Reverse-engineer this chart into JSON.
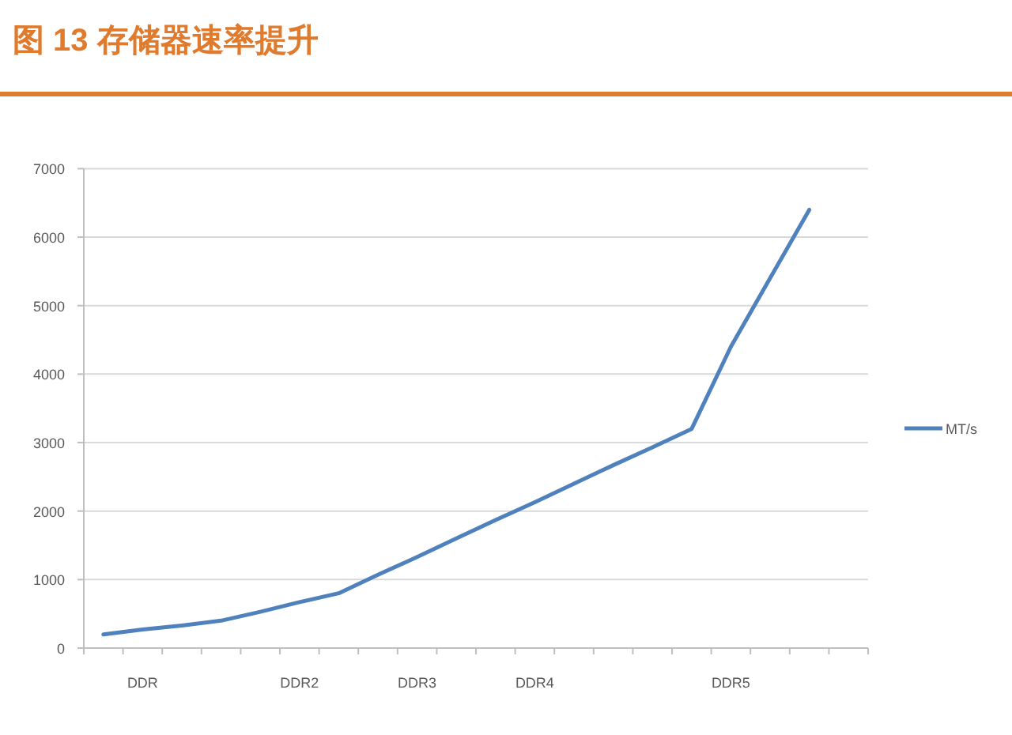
{
  "chart_data": {
    "type": "line",
    "title": "图 13 存储器速率提升",
    "categories": [
      null,
      "DDR",
      null,
      null,
      null,
      "DDR2",
      null,
      null,
      "DDR3",
      null,
      null,
      "DDR4",
      null,
      null,
      null,
      null,
      "DDR5",
      null,
      null,
      null
    ],
    "series": [
      {
        "name": "MT/s",
        "color": "#4f81bd",
        "values": [
          200,
          270,
          330,
          400,
          530,
          670,
          800,
          1070,
          1330,
          1600,
          1870,
          2130,
          2400,
          2670,
          2930,
          3200,
          4400,
          5400,
          6400,
          null
        ]
      }
    ],
    "ylim": [
      0,
      7000
    ],
    "yticks": [
      0,
      1000,
      2000,
      3000,
      4000,
      5000,
      6000,
      7000
    ],
    "grid": "y",
    "legend": "right",
    "marker": "none",
    "line_style": "solid"
  }
}
